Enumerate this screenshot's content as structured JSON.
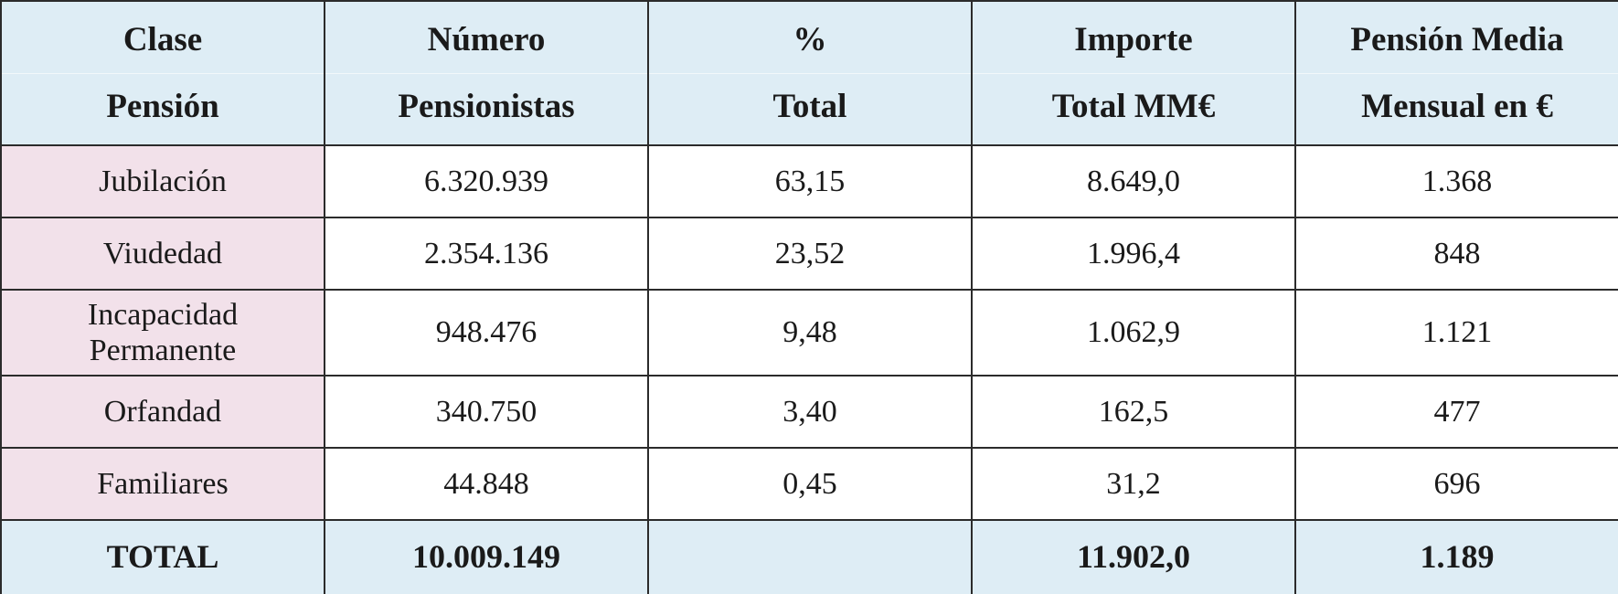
{
  "table": {
    "header": [
      [
        "Clase",
        "Pensión"
      ],
      [
        "Número",
        "Pensionistas"
      ],
      [
        "%",
        "Total"
      ],
      [
        "Importe",
        "Total MM€"
      ],
      [
        "Pensión Media",
        "Mensual en €"
      ]
    ],
    "rows": [
      [
        "Jubilación",
        "6.320.939",
        "63,15",
        "8.649,0",
        "1.368"
      ],
      [
        "Viudedad",
        "2.354.136",
        "23,52",
        "1.996,4",
        "848"
      ],
      [
        "Incapacidad Permanente",
        "948.476",
        "9,48",
        "1.062,9",
        "1.121"
      ],
      [
        "Orfandad",
        "340.750",
        "3,40",
        "162,5",
        "477"
      ],
      [
        "Familiares",
        "44.848",
        "0,45",
        "31,2",
        "696"
      ]
    ],
    "total": {
      "label": "TOTAL",
      "pensioners": "10.009.149",
      "amount": "11.902,0",
      "average": "1.189"
    }
  }
}
